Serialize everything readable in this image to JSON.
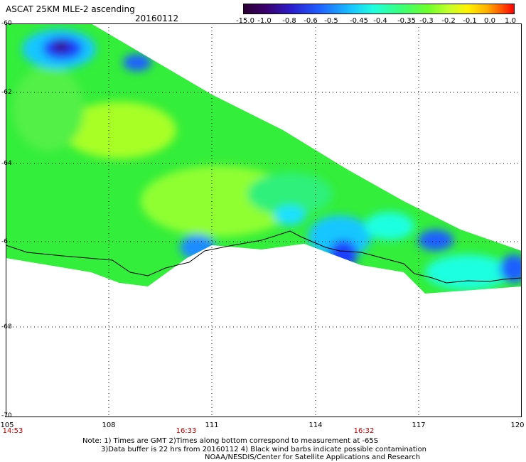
{
  "title": "ASCAT 25KM MLE-2 ascending",
  "date": "20160112",
  "colorbar": {
    "labels": [
      "-15.0",
      "-1.0",
      "-0.8",
      "-0.6",
      "-0.5",
      "-0.45",
      "-0.4",
      "-0.35",
      "-0.3",
      "-0.2",
      "-0.1",
      "0.0",
      "1.0"
    ]
  },
  "axes": {
    "lat_ticks": [
      "-60",
      "-62",
      "-64",
      "-6",
      "-68",
      "-70"
    ],
    "lon_ticks": [
      "105",
      "108",
      "111",
      "114",
      "117",
      "120"
    ],
    "time_ticks": [
      "14:53",
      "16:33",
      "16:32"
    ]
  },
  "notes": {
    "line1": "Note: 1) Times are GMT 2)Times along bottom correspond to measurement at -65S",
    "line2": "3)Data buffer is 22 hrs from 20160112 4) Black wind barbs indicate possible contamination",
    "line3": "NOAA/NESDIS/Center for Satellite Applications and Research"
  },
  "colors": {
    "time_label": "#c00000",
    "grid": "#000000",
    "coast": "#000000"
  }
}
